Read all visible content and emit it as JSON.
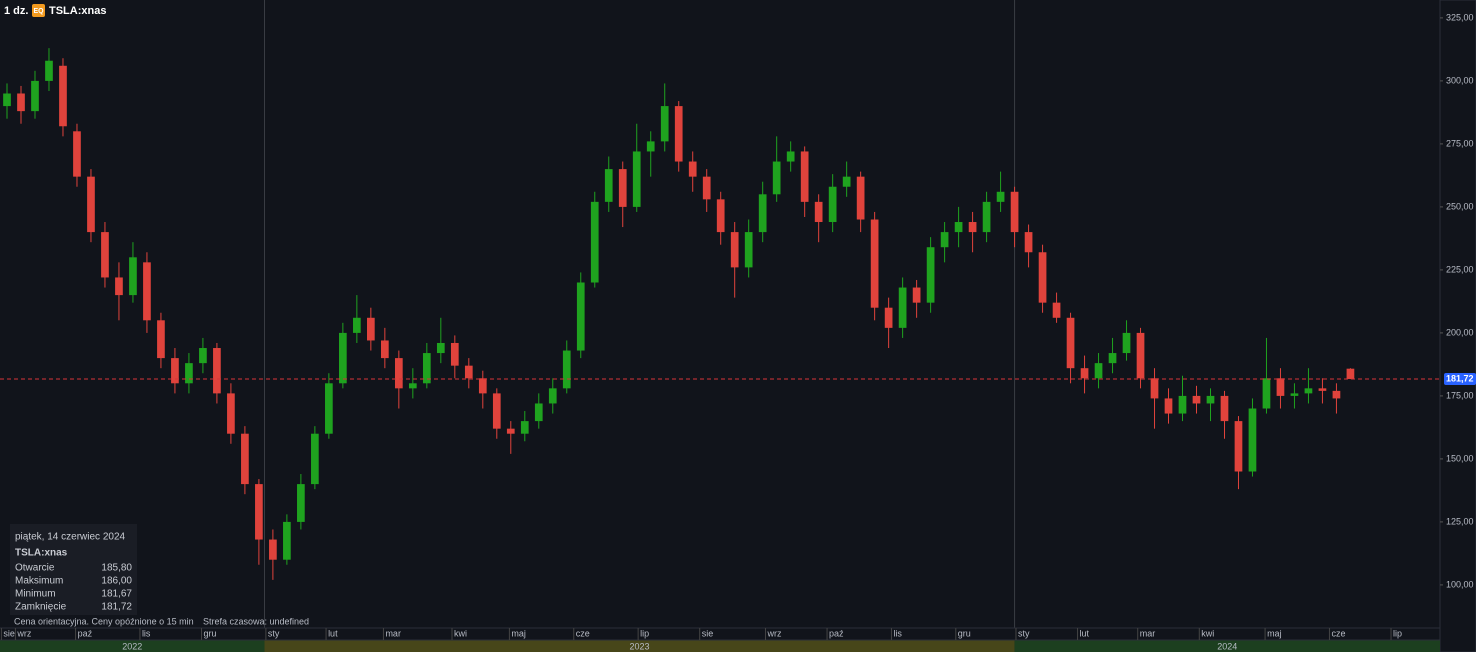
{
  "header": {
    "interval": "1 dz.",
    "badge": "EQ",
    "symbol": "TSLA:xnas"
  },
  "tooltip": {
    "date": "piątek, 14 czerwiec 2024",
    "symbol": "TSLA:xnas",
    "rows": [
      {
        "label": "Otwarcie",
        "value": "185,80"
      },
      {
        "label": "Maksimum",
        "value": "186,00"
      },
      {
        "label": "Minimum",
        "value": "181,67"
      },
      {
        "label": "Zamknięcie",
        "value": "181,72"
      }
    ]
  },
  "notes": [
    "Cena orientacyjna. Ceny opóźnione o 15 min",
    "Strefa czasowa: undefined"
  ],
  "chart_data": {
    "type": "candlestick",
    "up_color": "#1fa31f",
    "down_color": "#e0433c",
    "x": [
      0,
      1,
      2,
      3,
      4,
      5,
      6,
      7,
      8,
      9,
      10,
      11,
      12,
      13,
      14,
      15,
      16,
      17,
      18,
      19,
      20,
      21,
      22,
      23,
      24,
      25,
      26,
      27,
      28,
      29,
      30,
      31,
      32,
      33,
      34,
      35,
      36,
      37,
      38,
      39,
      40,
      41,
      42,
      43,
      44,
      45,
      46,
      47,
      48,
      49,
      50,
      51,
      52,
      53,
      54,
      55,
      56,
      57,
      58,
      59,
      60,
      61,
      62,
      63,
      64,
      65,
      66,
      67,
      68,
      69,
      70,
      71,
      72,
      73,
      74,
      75,
      76,
      77,
      78,
      79,
      80,
      81,
      82,
      83,
      84,
      85,
      86,
      87,
      88,
      89,
      90,
      91,
      92,
      93,
      94,
      95,
      96
    ],
    "open": [
      290,
      295,
      288,
      300,
      306,
      280,
      262,
      240,
      222,
      215,
      228,
      205,
      190,
      180,
      188,
      194,
      176,
      160,
      140,
      118,
      110,
      125,
      140,
      160,
      180,
      200,
      206,
      197,
      190,
      178,
      180,
      192,
      196,
      187,
      182,
      176,
      162,
      160,
      165,
      172,
      178,
      193,
      220,
      252,
      265,
      250,
      272,
      276,
      290,
      268,
      262,
      253,
      240,
      226,
      240,
      255,
      268,
      272,
      252,
      244,
      258,
      262,
      245,
      210,
      202,
      218,
      212,
      234,
      240,
      244,
      240,
      252,
      256,
      240,
      232,
      212,
      206,
      186,
      182,
      188,
      192,
      200,
      182,
      174,
      168,
      175,
      172,
      175,
      165,
      145,
      170,
      182,
      175,
      176,
      178,
      177,
      185.8
    ],
    "high": [
      299,
      298,
      304,
      313,
      309,
      283,
      265,
      244,
      228,
      236,
      232,
      208,
      194,
      192,
      198,
      196,
      180,
      163,
      142,
      122,
      128,
      144,
      163,
      184,
      204,
      215,
      210,
      202,
      193,
      186,
      196,
      206,
      199,
      190,
      185,
      178,
      165,
      169,
      176,
      182,
      197,
      224,
      256,
      270,
      268,
      283,
      280,
      299,
      292,
      272,
      265,
      256,
      244,
      245,
      260,
      278,
      276,
      274,
      255,
      263,
      268,
      264,
      248,
      214,
      222,
      221,
      238,
      244,
      250,
      248,
      256,
      264,
      258,
      243,
      235,
      216,
      208,
      191,
      192,
      198,
      205,
      202,
      186,
      178,
      183,
      179,
      178,
      177,
      167,
      174,
      198,
      186,
      180,
      186,
      182,
      180,
      186
    ],
    "low": [
      285,
      283,
      285,
      296,
      278,
      258,
      236,
      218,
      205,
      212,
      200,
      186,
      176,
      176,
      184,
      172,
      156,
      136,
      108,
      102,
      108,
      122,
      138,
      158,
      178,
      196,
      193,
      186,
      170,
      174,
      178,
      188,
      182,
      178,
      170,
      158,
      152,
      157,
      162,
      168,
      176,
      190,
      218,
      248,
      242,
      248,
      262,
      272,
      264,
      256,
      248,
      235,
      214,
      222,
      236,
      252,
      264,
      246,
      236,
      240,
      254,
      240,
      205,
      194,
      198,
      206,
      208,
      228,
      234,
      232,
      236,
      248,
      234,
      226,
      208,
      204,
      180,
      176,
      178,
      184,
      189,
      178,
      162,
      164,
      165,
      168,
      165,
      158,
      138,
      143,
      168,
      170,
      170,
      172,
      172,
      168,
      181.67
    ],
    "close": [
      295,
      288,
      300,
      308,
      282,
      262,
      240,
      222,
      215,
      230,
      205,
      190,
      180,
      188,
      194,
      176,
      160,
      140,
      118,
      110,
      125,
      140,
      160,
      180,
      200,
      206,
      197,
      190,
      178,
      180,
      192,
      196,
      187,
      182,
      176,
      162,
      160,
      165,
      172,
      178,
      193,
      220,
      252,
      265,
      250,
      272,
      276,
      290,
      268,
      262,
      253,
      240,
      226,
      240,
      255,
      268,
      272,
      252,
      244,
      258,
      262,
      245,
      210,
      202,
      218,
      212,
      234,
      240,
      244,
      240,
      252,
      256,
      240,
      232,
      212,
      206,
      186,
      182,
      188,
      192,
      200,
      182,
      174,
      168,
      175,
      172,
      175,
      165,
      145,
      170,
      182,
      175,
      176,
      178,
      177,
      174,
      181.72
    ],
    "xlim": [
      -0.5,
      102.4
    ],
    "ylim": [
      82.9,
      332.1
    ],
    "yticks": [
      {
        "value": 100,
        "label": "100,00"
      },
      {
        "value": 125,
        "label": "125,00"
      },
      {
        "value": 150,
        "label": "150,00"
      },
      {
        "value": 175,
        "label": "175,00"
      },
      {
        "value": 200,
        "label": "200,00"
      },
      {
        "value": 225,
        "label": "225,00"
      },
      {
        "value": 250,
        "label": "250,00"
      },
      {
        "value": 275,
        "label": "275,00"
      },
      {
        "value": 300,
        "label": "300,00"
      },
      {
        "value": 325,
        "label": "325,00"
      }
    ],
    "xticks": [
      {
        "value": -0.4,
        "label": "sie"
      },
      {
        "value": 0.6,
        "label": "wrz"
      },
      {
        "value": 4.9,
        "label": "paź"
      },
      {
        "value": 9.5,
        "label": "lis"
      },
      {
        "value": 13.9,
        "label": "gru"
      },
      {
        "value": 18.5,
        "label": "sty"
      },
      {
        "value": 22.8,
        "label": "lut"
      },
      {
        "value": 26.9,
        "label": "mar"
      },
      {
        "value": 31.8,
        "label": "kwi"
      },
      {
        "value": 35.9,
        "label": "maj"
      },
      {
        "value": 40.5,
        "label": "cze"
      },
      {
        "value": 45.1,
        "label": "lip"
      },
      {
        "value": 49.5,
        "label": "sie"
      },
      {
        "value": 54.2,
        "label": "wrz"
      },
      {
        "value": 58.6,
        "label": "paź"
      },
      {
        "value": 63.2,
        "label": "lis"
      },
      {
        "value": 67.8,
        "label": "gru"
      },
      {
        "value": 72.1,
        "label": "sty"
      },
      {
        "value": 76.5,
        "label": "lut"
      },
      {
        "value": 80.8,
        "label": "mar"
      },
      {
        "value": 85.2,
        "label": "kwi"
      },
      {
        "value": 89.9,
        "label": "maj"
      },
      {
        "value": 94.5,
        "label": "cze"
      },
      {
        "value": 98.9,
        "label": "lip"
      }
    ],
    "years": [
      {
        "label": "2022",
        "start": -0.5,
        "end": 18.4,
        "color": "#1c3f1f"
      },
      {
        "label": "2023",
        "start": 18.4,
        "end": 72,
        "color": "#474619"
      },
      {
        "label": "2024",
        "start": 72,
        "end": 102.4,
        "color": "#1c3f1f"
      }
    ],
    "last_price": {
      "value": 181.72,
      "label": "181,72",
      "color": "#d6343a",
      "label_bg": "#2962ff"
    }
  }
}
